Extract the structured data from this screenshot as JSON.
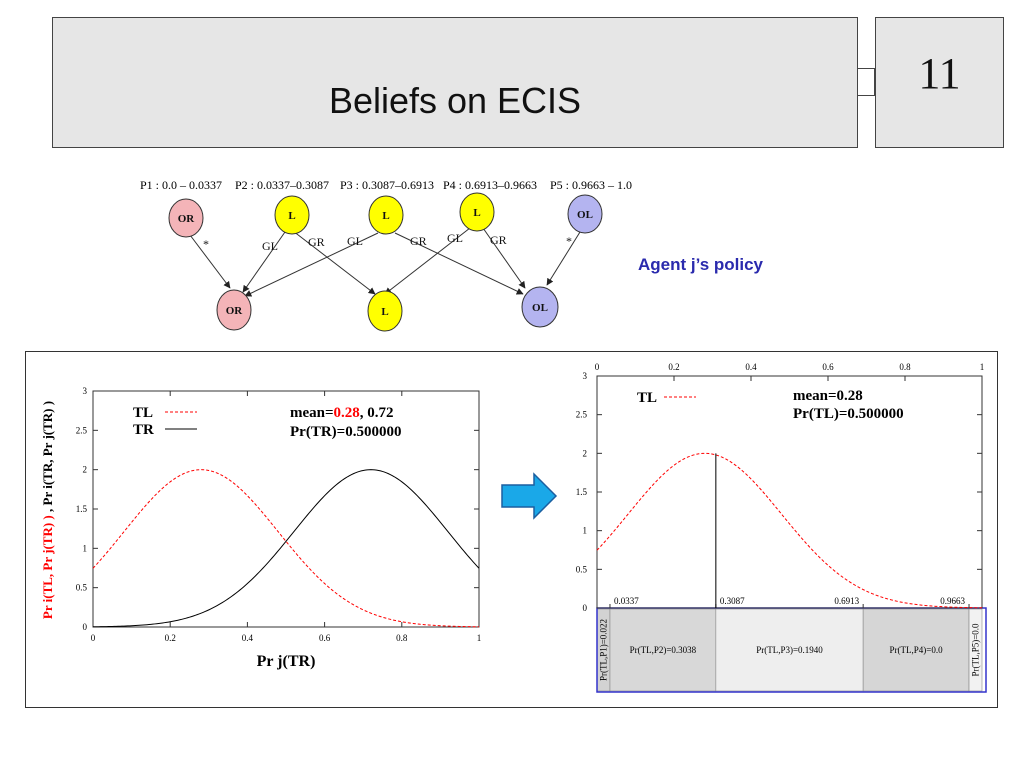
{
  "slide": {
    "title": "Beliefs on ECIS",
    "number": "11"
  },
  "policy": {
    "label": "Agent j’s policy",
    "partitions": [
      "P1 : 0.0 – 0.0337",
      "P2 : 0.0337–0.3087",
      "P3 : 0.3087–0.6913",
      "P4 : 0.6913–0.9663",
      "P5 : 0.9663 – 1.0"
    ],
    "top_nodes": [
      "OR",
      "L",
      "L",
      "L",
      "OL"
    ],
    "bottom_nodes": [
      "OR",
      "L",
      "OL"
    ],
    "edge_labels": [
      "*",
      "GL",
      "GR",
      "GL",
      "GR",
      "GL",
      "GR",
      "*"
    ],
    "colors": {
      "OR": "#f4b4b8",
      "L": "#ffff00",
      "OL": "#b4b4f0"
    }
  },
  "chart_data": [
    {
      "type": "line",
      "ylabel_parts": {
        "red": "Pr i(TL, Pr j(TR) )",
        "sep": " , ",
        "black": "Pr i(TR, Pr j(TR) )"
      },
      "xlabel": "Pr j(TR)",
      "xlim": [
        0,
        1
      ],
      "ylim": [
        0,
        3
      ],
      "xticks": [
        "0",
        "0.2",
        "0.4",
        "0.6",
        "0.8",
        "1"
      ],
      "yticks": [
        "0",
        "0.5",
        "1",
        "1.5",
        "2",
        "2.5",
        "3"
      ],
      "legend": [
        {
          "name": "TL",
          "style": "dashed",
          "color": "#ff0000"
        },
        {
          "name": "TR",
          "style": "solid",
          "color": "#000000"
        }
      ],
      "annotation": {
        "mean_prefix": "mean=",
        "mean_red": "0.28",
        "mean_suffix": ", 0.72",
        "pr": "Pr(TR)=0.500000"
      },
      "series": [
        {
          "name": "TL",
          "peak_x": 0.28,
          "peak_y": 2.0
        },
        {
          "name": "TR",
          "peak_x": 0.72,
          "peak_y": 2.0
        }
      ]
    },
    {
      "type": "line",
      "xlim": [
        0,
        1
      ],
      "ylim": [
        0,
        3
      ],
      "xticks_top": [
        "0",
        "0.2",
        "0.4",
        "0.6",
        "0.8",
        "1"
      ],
      "yticks": [
        "0",
        "0.5",
        "1",
        "1.5",
        "2",
        "2.5",
        "3"
      ],
      "legend": [
        {
          "name": "TL",
          "style": "dashed",
          "color": "#ff0000"
        }
      ],
      "annotation": {
        "mean": "mean=0.28",
        "pr": "Pr(TL)=0.500000"
      },
      "series": [
        {
          "name": "TL",
          "peak_x": 0.28,
          "peak_y": 2.0
        }
      ],
      "vertical_marker_x": 0.3087,
      "boundaries": [
        {
          "x": 0.0337,
          "label": "0.0337"
        },
        {
          "x": 0.3087,
          "label": "0.3087"
        },
        {
          "x": 0.6913,
          "label": "0.6913"
        },
        {
          "x": 0.9663,
          "label": "0.9663"
        }
      ],
      "regions": [
        {
          "label": "Pr(TL,P1)=0.022",
          "from": 0.0,
          "to": 0.0337,
          "fill": "#d2d2d2",
          "vertical": true
        },
        {
          "label": "Pr(TL,P2)=0.3038",
          "from": 0.0337,
          "to": 0.3087,
          "fill": "#d8d8d8"
        },
        {
          "label": "Pr(TL,P3)=0.1940",
          "from": 0.3087,
          "to": 0.6913,
          "fill": "#eeeeee"
        },
        {
          "label": "Pr(TL,P4)=0.0",
          "from": 0.6913,
          "to": 0.9663,
          "fill": "#d6d6d6"
        },
        {
          "label": "Pr(TL,P5)=0.0",
          "from": 0.9663,
          "to": 1.0,
          "fill": "#f2f2f2",
          "vertical": true
        }
      ]
    }
  ]
}
